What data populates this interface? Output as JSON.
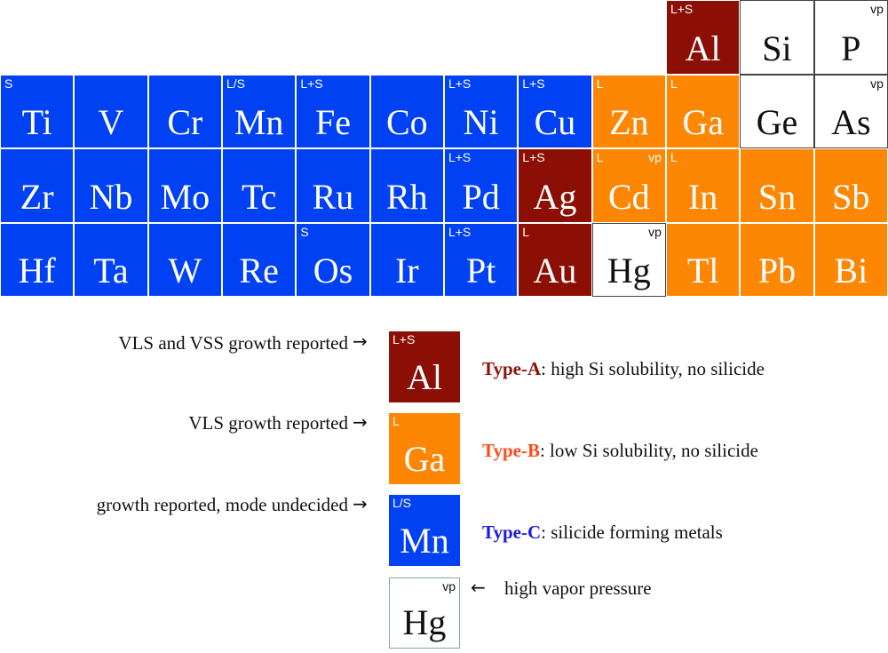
{
  "colors": {
    "type_a": "#8b0f05",
    "type_b": "#fd8602",
    "type_c": "#0042f3",
    "plain": "#ffffff",
    "type_a_text": "#8b1208",
    "type_b_text": "#ff4a1a",
    "type_c_text": "#1a1ae0"
  },
  "elements": [
    {
      "sym": "Al",
      "tag": "L+S",
      "vp": "",
      "type": "A",
      "row": 0,
      "col": 9
    },
    {
      "sym": "Si",
      "tag": "",
      "vp": "",
      "type": "none",
      "row": 0,
      "col": 10
    },
    {
      "sym": "P",
      "tag": "",
      "vp": "vp",
      "type": "none",
      "row": 0,
      "col": 11
    },
    {
      "sym": "Ti",
      "tag": "S",
      "vp": "",
      "type": "C",
      "row": 1,
      "col": 0
    },
    {
      "sym": "V",
      "tag": "",
      "vp": "",
      "type": "C",
      "row": 1,
      "col": 1
    },
    {
      "sym": "Cr",
      "tag": "",
      "vp": "",
      "type": "C",
      "row": 1,
      "col": 2
    },
    {
      "sym": "Mn",
      "tag": "L/S",
      "vp": "",
      "type": "C",
      "row": 1,
      "col": 3
    },
    {
      "sym": "Fe",
      "tag": "L+S",
      "vp": "",
      "type": "C",
      "row": 1,
      "col": 4
    },
    {
      "sym": "Co",
      "tag": "",
      "vp": "",
      "type": "C",
      "row": 1,
      "col": 5
    },
    {
      "sym": "Ni",
      "tag": "L+S",
      "vp": "",
      "type": "C",
      "row": 1,
      "col": 6
    },
    {
      "sym": "Cu",
      "tag": "L+S",
      "vp": "",
      "type": "C",
      "row": 1,
      "col": 7
    },
    {
      "sym": "Zn",
      "tag": "L",
      "vp": "",
      "type": "B",
      "row": 1,
      "col": 8
    },
    {
      "sym": "Ga",
      "tag": "L",
      "vp": "",
      "type": "B",
      "row": 1,
      "col": 9
    },
    {
      "sym": "Ge",
      "tag": "",
      "vp": "",
      "type": "none",
      "row": 1,
      "col": 10
    },
    {
      "sym": "As",
      "tag": "",
      "vp": "vp",
      "type": "none",
      "row": 1,
      "col": 11
    },
    {
      "sym": "Zr",
      "tag": "",
      "vp": "",
      "type": "C",
      "row": 2,
      "col": 0
    },
    {
      "sym": "Nb",
      "tag": "",
      "vp": "",
      "type": "C",
      "row": 2,
      "col": 1
    },
    {
      "sym": "Mo",
      "tag": "",
      "vp": "",
      "type": "C",
      "row": 2,
      "col": 2
    },
    {
      "sym": "Tc",
      "tag": "",
      "vp": "",
      "type": "C",
      "row": 2,
      "col": 3
    },
    {
      "sym": "Ru",
      "tag": "",
      "vp": "",
      "type": "C",
      "row": 2,
      "col": 4
    },
    {
      "sym": "Rh",
      "tag": "",
      "vp": "",
      "type": "C",
      "row": 2,
      "col": 5
    },
    {
      "sym": "Pd",
      "tag": "L+S",
      "vp": "",
      "type": "C",
      "row": 2,
      "col": 6
    },
    {
      "sym": "Ag",
      "tag": "L+S",
      "vp": "",
      "type": "A",
      "row": 2,
      "col": 7
    },
    {
      "sym": "Cd",
      "tag": "L",
      "vp": "vp",
      "type": "B",
      "row": 2,
      "col": 8
    },
    {
      "sym": "In",
      "tag": "L",
      "vp": "",
      "type": "B",
      "row": 2,
      "col": 9
    },
    {
      "sym": "Sn",
      "tag": "",
      "vp": "",
      "type": "B",
      "row": 2,
      "col": 10
    },
    {
      "sym": "Sb",
      "tag": "",
      "vp": "",
      "type": "B",
      "row": 2,
      "col": 11
    },
    {
      "sym": "Hf",
      "tag": "",
      "vp": "",
      "type": "C",
      "row": 3,
      "col": 0
    },
    {
      "sym": "Ta",
      "tag": "",
      "vp": "",
      "type": "C",
      "row": 3,
      "col": 1
    },
    {
      "sym": "W",
      "tag": "",
      "vp": "",
      "type": "C",
      "row": 3,
      "col": 2
    },
    {
      "sym": "Re",
      "tag": "",
      "vp": "",
      "type": "C",
      "row": 3,
      "col": 3
    },
    {
      "sym": "Os",
      "tag": "S",
      "vp": "",
      "type": "C",
      "row": 3,
      "col": 4
    },
    {
      "sym": "Ir",
      "tag": "",
      "vp": "",
      "type": "C",
      "row": 3,
      "col": 5
    },
    {
      "sym": "Pt",
      "tag": "L+S",
      "vp": "",
      "type": "C",
      "row": 3,
      "col": 6
    },
    {
      "sym": "Au",
      "tag": "L",
      "vp": "",
      "type": "A",
      "row": 3,
      "col": 7
    },
    {
      "sym": "Hg",
      "tag": "",
      "vp": "vp",
      "type": "none",
      "row": 3,
      "col": 8
    },
    {
      "sym": "Tl",
      "tag": "",
      "vp": "",
      "type": "B",
      "row": 3,
      "col": 9
    },
    {
      "sym": "Pb",
      "tag": "",
      "vp": "",
      "type": "B",
      "row": 3,
      "col": 10
    },
    {
      "sym": "Bi",
      "tag": "",
      "vp": "",
      "type": "B",
      "row": 3,
      "col": 11
    }
  ],
  "legend": {
    "vls_vss": {
      "label": "VLS and VSS growth reported",
      "arrow": "→",
      "tag": "L+S",
      "sym": "Al"
    },
    "vls": {
      "label": "VLS growth reported",
      "arrow": "→",
      "tag": "L",
      "sym": "Ga"
    },
    "undecided": {
      "label": "growth reported, mode undecided",
      "arrow": "→",
      "tag": "L/S",
      "sym": "Mn"
    },
    "vp_box": {
      "vp": "vp",
      "sym": "Hg",
      "arrow": "←",
      "note": "high vapor pressure"
    },
    "type_a": {
      "name": "Type-A",
      "desc": ": high Si solubility, no silicide"
    },
    "type_b": {
      "name": "Type-B",
      "desc": ": low Si solubility, no silicide"
    },
    "type_c": {
      "name": "Type-C",
      "desc": ": silicide forming metals"
    }
  }
}
